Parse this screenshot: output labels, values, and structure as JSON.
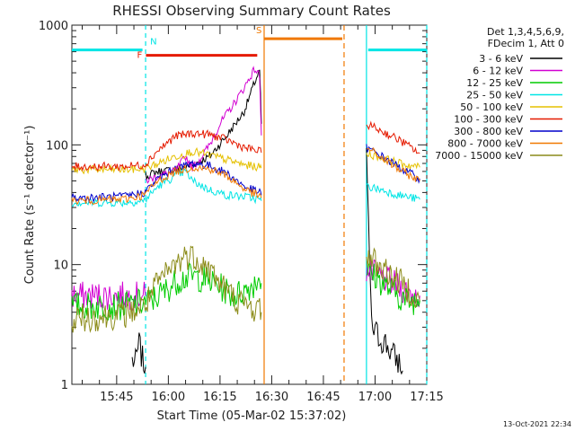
{
  "chart_data": {
    "type": "line",
    "title": "RHESSI Observing Summary Count Rates",
    "xlabel": "Start Time (05-Mar-02 15:37:02)",
    "ylabel": "Count Rate (s⁻¹ detector⁻¹)",
    "y_scale": "log",
    "ylim": [
      1,
      1000
    ],
    "xlim_minutes": [
      -5,
      98
    ],
    "x_ticks": [
      {
        "label": "15:45",
        "t": 8
      },
      {
        "label": "16:00",
        "t": 23
      },
      {
        "label": "16:15",
        "t": 38
      },
      {
        "label": "16:30",
        "t": 53
      },
      {
        "label": "16:45",
        "t": 68
      },
      {
        "label": "17:00",
        "t": 83
      },
      {
        "label": "17:15",
        "t": 98
      }
    ],
    "y_ticks": [
      {
        "label": "1",
        "v": 1
      },
      {
        "label": "10",
        "v": 10
      },
      {
        "label": "100",
        "v": 100
      },
      {
        "label": "1000",
        "v": 1000
      }
    ],
    "legend_header": [
      "Det 1,3,4,5,6,9,",
      "FDecim 1, Att 0"
    ],
    "legend_placement": "right",
    "series": [
      {
        "name": "3 - 6 keV",
        "color": "#000000",
        "segments": [
          [
            [
              12.5,
              1.6
            ],
            [
              13.5,
              1.5
            ],
            [
              14.5,
              2.2
            ],
            [
              15.5,
              1.6
            ],
            [
              16.4,
              1.4
            ]
          ],
          [
            [
              16.4,
              55
            ],
            [
              20,
              60
            ],
            [
              25,
              62
            ],
            [
              30,
              68
            ],
            [
              35,
              80
            ],
            [
              40,
              120
            ],
            [
              45,
              190
            ],
            [
              48,
              330
            ],
            [
              49.5,
              420
            ],
            [
              50,
              150
            ]
          ],
          [
            [
              80.5,
              90
            ],
            [
              82,
              3
            ],
            [
              84,
              2.5
            ],
            [
              86,
              2.2
            ],
            [
              88,
              1.8
            ],
            [
              90,
              1.5
            ],
            [
              91,
              1.3
            ]
          ]
        ]
      },
      {
        "name": "6 - 12 keV",
        "color": "#d200d2",
        "segments": [
          [
            [
              -5,
              5.5
            ],
            [
              5,
              5.5
            ],
            [
              16.3,
              5.5
            ]
          ],
          [
            [
              16.4,
              50
            ],
            [
              20,
              55
            ],
            [
              25,
              60
            ],
            [
              28,
              80
            ],
            [
              30,
              65
            ],
            [
              32,
              75
            ],
            [
              35,
              100
            ],
            [
              38,
              150
            ],
            [
              42,
              220
            ],
            [
              45,
              300
            ],
            [
              48,
              430
            ],
            [
              49.5,
              380
            ],
            [
              50,
              120
            ]
          ],
          [
            [
              80.5,
              9
            ],
            [
              84,
              8
            ],
            [
              88,
              7
            ],
            [
              92,
              6
            ],
            [
              96,
              5.5
            ]
          ]
        ]
      },
      {
        "name": "12 - 25 keV",
        "color": "#00cc00",
        "segments": [
          [
            [
              -5,
              4.5
            ],
            [
              10,
              4.5
            ],
            [
              18,
              5
            ],
            [
              22,
              6
            ],
            [
              26,
              7.5
            ],
            [
              30,
              8
            ],
            [
              34,
              7.5
            ],
            [
              38,
              6.5
            ],
            [
              42,
              5.5
            ],
            [
              45,
              6
            ],
            [
              48,
              7
            ],
            [
              49.5,
              8
            ],
            [
              50,
              7
            ]
          ],
          [
            [
              80.5,
              9
            ],
            [
              84,
              7.5
            ],
            [
              88,
              6
            ],
            [
              92,
              5
            ],
            [
              96,
              5
            ]
          ]
        ]
      },
      {
        "name": "25 - 50 keV",
        "color": "#00e5e5",
        "segments": [
          [
            [
              -5,
              33
            ],
            [
              10,
              33
            ],
            [
              16,
              34
            ],
            [
              20,
              45
            ],
            [
              25,
              55
            ],
            [
              28,
              60
            ],
            [
              30,
              50
            ],
            [
              35,
              42
            ],
            [
              40,
              38
            ],
            [
              45,
              37
            ],
            [
              49.5,
              35
            ],
            [
              50,
              34
            ]
          ],
          [
            [
              80.5,
              45
            ],
            [
              85,
              42
            ],
            [
              90,
              38
            ],
            [
              96,
              35
            ]
          ]
        ]
      },
      {
        "name": "50 - 100 keV",
        "color": "#e5c000",
        "segments": [
          [
            [
              -5,
              62
            ],
            [
              10,
              62
            ],
            [
              16,
              63
            ],
            [
              20,
              70
            ],
            [
              25,
              80
            ],
            [
              30,
              88
            ],
            [
              35,
              82
            ],
            [
              40,
              75
            ],
            [
              45,
              68
            ],
            [
              49.5,
              65
            ],
            [
              50,
              64
            ]
          ],
          [
            [
              80.5,
              85
            ],
            [
              85,
              78
            ],
            [
              90,
              70
            ],
            [
              96,
              65
            ]
          ]
        ]
      },
      {
        "name": "100 - 300 keV",
        "color": "#e51a00",
        "segments": [
          [
            [
              -5,
              66
            ],
            [
              10,
              66
            ],
            [
              16,
              68
            ],
            [
              20,
              90
            ],
            [
              25,
              118
            ],
            [
              30,
              125
            ],
            [
              35,
              122
            ],
            [
              40,
              110
            ],
            [
              45,
              95
            ],
            [
              49.5,
              88
            ],
            [
              50,
              86
            ]
          ],
          [
            [
              80.5,
              150
            ],
            [
              85,
              130
            ],
            [
              90,
              110
            ],
            [
              96,
              85
            ]
          ]
        ]
      },
      {
        "name": "300 - 800 keV",
        "color": "#0000cc",
        "segments": [
          [
            [
              -5,
              36
            ],
            [
              10,
              37
            ],
            [
              16,
              40
            ],
            [
              20,
              52
            ],
            [
              25,
              63
            ],
            [
              30,
              70
            ],
            [
              35,
              67
            ],
            [
              40,
              58
            ],
            [
              45,
              45
            ],
            [
              49.5,
              40
            ],
            [
              50,
              38
            ]
          ],
          [
            [
              80.5,
              95
            ],
            [
              85,
              80
            ],
            [
              90,
              65
            ],
            [
              96,
              52
            ]
          ]
        ]
      },
      {
        "name": "800 - 7000 keV",
        "color": "#f07800",
        "segments": [
          [
            [
              -5,
              34
            ],
            [
              10,
              35
            ],
            [
              16,
              38
            ],
            [
              20,
              50
            ],
            [
              25,
              60
            ],
            [
              30,
              65
            ],
            [
              35,
              63
            ],
            [
              40,
              55
            ],
            [
              45,
              43
            ],
            [
              49.5,
              37
            ],
            [
              50,
              36
            ]
          ],
          [
            [
              80.5,
              95
            ],
            [
              85,
              78
            ],
            [
              90,
              62
            ],
            [
              96,
              50
            ]
          ]
        ]
      },
      {
        "name": "7000 - 15000 keV",
        "color": "#8c8c1a",
        "segments": [
          [
            [
              -5,
              3.5
            ],
            [
              10,
              3.8
            ],
            [
              16,
              4.5
            ],
            [
              20,
              7
            ],
            [
              25,
              10
            ],
            [
              28,
              12
            ],
            [
              31,
              11.5
            ],
            [
              35,
              9
            ],
            [
              40,
              6
            ],
            [
              45,
              4.5
            ],
            [
              49.5,
              4.2
            ],
            [
              50,
              4
            ]
          ],
          [
            [
              80.5,
              12
            ],
            [
              84,
              10
            ],
            [
              88,
              8
            ],
            [
              92,
              6.5
            ],
            [
              96,
              5
            ]
          ]
        ]
      }
    ],
    "flags": [
      {
        "label": "N",
        "color": "#00e5e5",
        "kind": "night",
        "lines": [
          16.4,
          80.5,
          98
        ],
        "bars": [
          [
            -5,
            15.5,
            620
          ],
          [
            81,
            98,
            620
          ]
        ]
      },
      {
        "label": "F",
        "color": "#e51a00",
        "kind": "flare",
        "bars": [
          [
            16.5,
            48.8,
            560
          ]
        ]
      },
      {
        "label": "S",
        "color": "#f07800",
        "kind": "saa",
        "lines": [
          50.8,
          74
        ],
        "bars": [
          [
            50.8,
            73.5,
            770
          ]
        ]
      }
    ]
  },
  "timestamp": "13-Oct-2021 22:34"
}
